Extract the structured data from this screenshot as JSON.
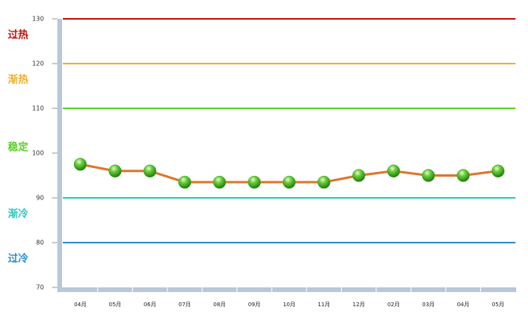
{
  "chart_data": {
    "type": "line",
    "categories": [
      "04月",
      "05月",
      "06月",
      "07月",
      "08月",
      "09月",
      "10月",
      "11月",
      "12月",
      "02月",
      "03月",
      "04月",
      "05月"
    ],
    "values": [
      97.5,
      96,
      96,
      93.5,
      93.5,
      93.5,
      93.5,
      93.5,
      95,
      96,
      95,
      95,
      96
    ],
    "color": "#d9782f",
    "marker_color": "#3fae1c",
    "ylim": [
      70,
      130
    ],
    "yticks": [
      70,
      80,
      90,
      100,
      110,
      120,
      130
    ],
    "zones": [
      {
        "label": "过热",
        "line": 130,
        "color": "#c0140c"
      },
      {
        "label": "渐热",
        "line": 120,
        "color": "#f0b030"
      },
      {
        "label": "稳定",
        "line": 110,
        "color": "#5bd028"
      },
      {
        "label": "渐冷",
        "line": 90,
        "color": "#2cc8c0"
      },
      {
        "label": "过冷",
        "line": 80,
        "color": "#2f8cc8"
      }
    ]
  }
}
